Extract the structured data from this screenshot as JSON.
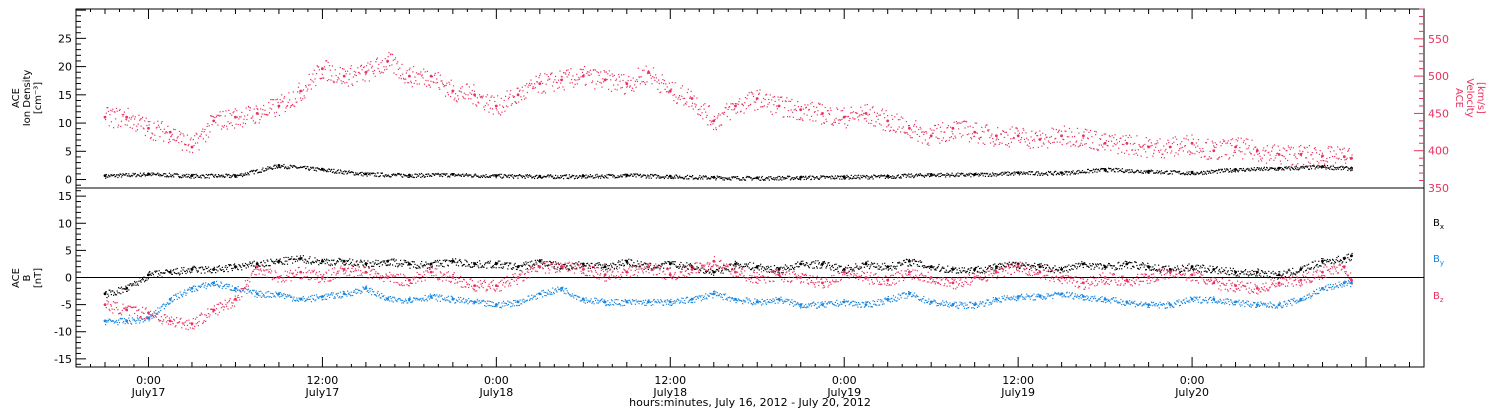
{
  "chart_data": [
    {
      "type": "scatter",
      "panel": "top",
      "left_axis": {
        "label_lines": [
          "ACE",
          "Ion Density",
          "[cm⁻³]"
        ],
        "ticks": [
          0,
          5,
          10,
          15,
          20,
          25
        ],
        "range": [
          -1.5,
          30.2
        ],
        "color": "#000000"
      },
      "right_axis": {
        "label_lines": [
          "ACE",
          "Velocity",
          "[km/s]"
        ],
        "ticks": [
          350,
          400,
          450,
          500,
          550
        ],
        "range": [
          350,
          590
        ],
        "color": "#e8315e"
      },
      "series": [
        {
          "name": "Ion Density",
          "axis": "left",
          "color": "#000000",
          "x": [
            -3,
            0,
            3,
            6,
            9,
            12,
            15,
            18,
            21,
            24,
            27,
            30,
            33,
            36,
            39,
            42,
            45,
            48,
            51,
            54,
            57,
            60,
            63,
            66,
            69,
            72,
            75,
            78,
            81,
            83
          ],
          "y": [
            0.7,
            1.0,
            0.7,
            0.7,
            2.5,
            1.8,
            1.0,
            0.8,
            0.9,
            0.7,
            0.6,
            0.6,
            0.8,
            0.6,
            0.4,
            0.3,
            0.4,
            0.5,
            0.6,
            0.9,
            0.9,
            1.2,
            1.2,
            1.8,
            1.5,
            1.2,
            1.8,
            2.0,
            2.3,
            2.0
          ]
        },
        {
          "name": "Velocity",
          "axis": "right",
          "color": "#e8315e",
          "x": [
            -3,
            -1.5,
            0,
            1.5,
            3,
            4.5,
            6,
            7.5,
            9,
            10.5,
            12,
            13.5,
            15,
            16.5,
            18,
            19.5,
            21,
            22.5,
            24,
            25.5,
            27,
            28.5,
            30,
            31.5,
            33,
            34.5,
            36,
            37.5,
            39,
            40.5,
            42,
            43.5,
            45,
            46.5,
            48,
            49.5,
            51,
            52.5,
            54,
            55.5,
            57,
            58.5,
            60,
            61.5,
            63,
            64.5,
            66,
            67.5,
            69,
            70.5,
            72,
            73.5,
            75,
            76.5,
            78,
            79.5,
            81,
            82.5,
            83
          ],
          "y": [
            445,
            445,
            430,
            425,
            405,
            440,
            445,
            450,
            460,
            480,
            510,
            500,
            505,
            520,
            500,
            500,
            480,
            475,
            460,
            475,
            490,
            495,
            500,
            495,
            490,
            505,
            480,
            470,
            440,
            460,
            470,
            460,
            455,
            450,
            445,
            450,
            440,
            430,
            420,
            430,
            425,
            420,
            420,
            415,
            420,
            420,
            410,
            410,
            405,
            405,
            410,
            400,
            405,
            400,
            395,
            395,
            393,
            392,
            390
          ]
        }
      ]
    },
    {
      "type": "scatter",
      "panel": "bottom",
      "left_axis": {
        "label_lines": [
          "ACE",
          "B",
          "[nT]"
        ],
        "ticks": [
          -15,
          -10,
          -5,
          0,
          5,
          10,
          15
        ],
        "range": [
          -16.5,
          16.5
        ],
        "color": "#000000"
      },
      "legend": {
        "placement": "right",
        "entries": [
          {
            "main": "B",
            "sub": "x",
            "color": "#000000"
          },
          {
            "main": "B",
            "sub": "y",
            "color": "#1a87e0"
          },
          {
            "main": "B",
            "sub": "z",
            "color": "#e8315e"
          }
        ]
      },
      "series": [
        {
          "name": "Bx",
          "color": "#000000",
          "x": [
            -3,
            -1.5,
            0,
            1.5,
            3,
            4.5,
            6,
            7.5,
            9,
            10.5,
            12,
            13.5,
            15,
            16.5,
            18,
            19.5,
            21,
            22.5,
            24,
            25.5,
            27,
            28.5,
            30,
            31.5,
            33,
            34.5,
            36,
            37.5,
            39,
            40.5,
            42,
            43.5,
            45,
            46.5,
            48,
            49.5,
            51,
            52.5,
            54,
            55.5,
            57,
            58.5,
            60,
            61.5,
            63,
            64.5,
            66,
            67.5,
            69,
            70.5,
            72,
            73.5,
            75,
            76.5,
            78,
            79.5,
            81,
            82.5,
            83
          ],
          "y": [
            -3,
            -2,
            0.5,
            1,
            1.5,
            1.5,
            2,
            2.5,
            3,
            3.5,
            3,
            3,
            2.5,
            3,
            2.5,
            2.5,
            3,
            2.5,
            2.5,
            2,
            3,
            2,
            2.5,
            2,
            3,
            2,
            2.5,
            2,
            1,
            2.5,
            2,
            1.5,
            2.5,
            2.5,
            1.5,
            2.5,
            2,
            3,
            2,
            1.5,
            1.5,
            2,
            2.5,
            2,
            1.5,
            2.5,
            2,
            2.5,
            2,
            1.5,
            2,
            1.5,
            1,
            1,
            0.5,
            1.5,
            3,
            3.5,
            4
          ]
        },
        {
          "name": "By",
          "color": "#1a87e0",
          "x": [
            -3,
            -1.5,
            0,
            1.5,
            3,
            4.5,
            6,
            7.5,
            9,
            10.5,
            12,
            13.5,
            15,
            16.5,
            18,
            19.5,
            21,
            22.5,
            24,
            25.5,
            27,
            28.5,
            30,
            31.5,
            33,
            34.5,
            36,
            37.5,
            39,
            40.5,
            42,
            43.5,
            45,
            46.5,
            48,
            49.5,
            51,
            52.5,
            54,
            55.5,
            57,
            58.5,
            60,
            61.5,
            63,
            64.5,
            66,
            67.5,
            69,
            70.5,
            72,
            73.5,
            75,
            76.5,
            78,
            79.5,
            81,
            82.5,
            83
          ],
          "y": [
            -8,
            -8,
            -7.5,
            -4,
            -2,
            -1,
            -2,
            -3,
            -3,
            -4,
            -3.5,
            -3,
            -2,
            -4,
            -4,
            -3.5,
            -4,
            -4.5,
            -5,
            -4.5,
            -3,
            -2,
            -4,
            -4.5,
            -4.5,
            -4.5,
            -4.5,
            -4,
            -3,
            -4,
            -4.5,
            -4,
            -5,
            -5,
            -4.5,
            -5,
            -4,
            -3,
            -4.5,
            -5,
            -5,
            -4,
            -3.5,
            -3.5,
            -3,
            -3.5,
            -4,
            -4.5,
            -5,
            -5,
            -4,
            -4,
            -4.5,
            -5,
            -5,
            -4,
            -2,
            -1,
            -1
          ]
        },
        {
          "name": "Bz",
          "color": "#e8315e",
          "x": [
            -3,
            -1.5,
            0,
            1.5,
            3,
            4.5,
            6,
            7.5,
            9,
            10.5,
            12,
            13.5,
            15,
            16.5,
            18,
            19.5,
            21,
            22.5,
            24,
            25.5,
            27,
            28.5,
            30,
            31.5,
            33,
            34.5,
            36,
            37.5,
            39,
            40.5,
            42,
            43.5,
            45,
            46.5,
            48,
            49.5,
            51,
            52.5,
            54,
            55.5,
            57,
            58.5,
            60,
            61.5,
            63,
            64.5,
            66,
            67.5,
            69,
            70.5,
            72,
            73.5,
            75,
            76.5,
            78,
            79.5,
            81,
            82.5,
            83
          ],
          "y": [
            -5,
            -6,
            -6.5,
            -8,
            -8.5,
            -6,
            -4,
            2,
            0,
            1,
            0,
            1.5,
            1,
            0,
            -0.5,
            1,
            0,
            -1.5,
            -1.5,
            0,
            2,
            2,
            1.5,
            0.5,
            1,
            2,
            0.5,
            1.5,
            3,
            1,
            0,
            0.5,
            0,
            -1,
            1,
            0,
            -0.5,
            1,
            0,
            -1,
            0,
            1,
            2,
            1,
            0,
            -1,
            0,
            -0.5,
            0,
            1,
            0.5,
            -1,
            -1.5,
            -2,
            -1,
            -0.5,
            1,
            2,
            -0.5
          ]
        }
      ]
    }
  ],
  "x_axis": {
    "range": [
      -5,
      88
    ],
    "title": "hours:minutes, July 16, 2012 - July 20, 2012",
    "ticks": [
      {
        "hours": 0,
        "time": "0:00",
        "date": "July17"
      },
      {
        "hours": 12,
        "time": "12:00",
        "date": "July17"
      },
      {
        "hours": 24,
        "time": "0:00",
        "date": "July18"
      },
      {
        "hours": 36,
        "time": "12:00",
        "date": "July18"
      },
      {
        "hours": 48,
        "time": "0:00",
        "date": "July19"
      },
      {
        "hours": 60,
        "time": "12:00",
        "date": "July19"
      },
      {
        "hours": 72,
        "time": "0:00",
        "date": "July20"
      }
    ]
  }
}
